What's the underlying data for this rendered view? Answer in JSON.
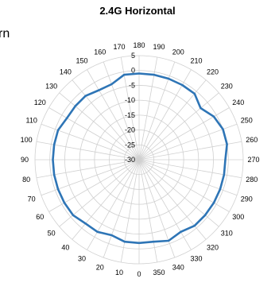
{
  "chart_data": {
    "type": "polar-line",
    "title": "2.4G Horizontal",
    "cut_text": "rn",
    "angular_ticks": [
      "0",
      "10",
      "20",
      "30",
      "40",
      "50",
      "60",
      "70",
      "80",
      "90",
      "100",
      "110",
      "120",
      "130",
      "140",
      "150",
      "160",
      "170",
      "180",
      "190",
      "200",
      "210",
      "220",
      "230",
      "240",
      "250",
      "260",
      "270",
      "280",
      "290",
      "300",
      "310",
      "320",
      "330",
      "340",
      "350"
    ],
    "radial_ticks": [
      "5",
      "0",
      "-5",
      "-10",
      "-15",
      "-20",
      "-25",
      "-30"
    ],
    "rlim": [
      -30,
      5
    ],
    "grid": true,
    "series": [
      {
        "color": "#2e75b6",
        "points": [
          [
            0,
            -2
          ],
          [
            10,
            -2
          ],
          [
            20,
            -3
          ],
          [
            30,
            -2
          ],
          [
            40,
            -2
          ],
          [
            50,
            -1
          ],
          [
            60,
            -1
          ],
          [
            70,
            -1
          ],
          [
            80,
            -1
          ],
          [
            90,
            -1
          ],
          [
            100,
            -1
          ],
          [
            110,
            -1
          ],
          [
            120,
            -2
          ],
          [
            130,
            -2
          ],
          [
            140,
            -2
          ],
          [
            150,
            -3
          ],
          [
            160,
            -3
          ],
          [
            170,
            -1
          ],
          [
            180,
            -1
          ],
          [
            190,
            -1
          ],
          [
            200,
            -1
          ],
          [
            210,
            -1
          ],
          [
            220,
            -1
          ],
          [
            230,
            -3
          ],
          [
            240,
            -1
          ],
          [
            250,
            0
          ],
          [
            260,
            0
          ],
          [
            270,
            -1
          ],
          [
            280,
            -1
          ],
          [
            290,
            -1
          ],
          [
            300,
            -1
          ],
          [
            310,
            -1
          ],
          [
            320,
            -1
          ],
          [
            330,
            -2
          ],
          [
            340,
            -1
          ],
          [
            350,
            -2
          ]
        ]
      }
    ]
  }
}
